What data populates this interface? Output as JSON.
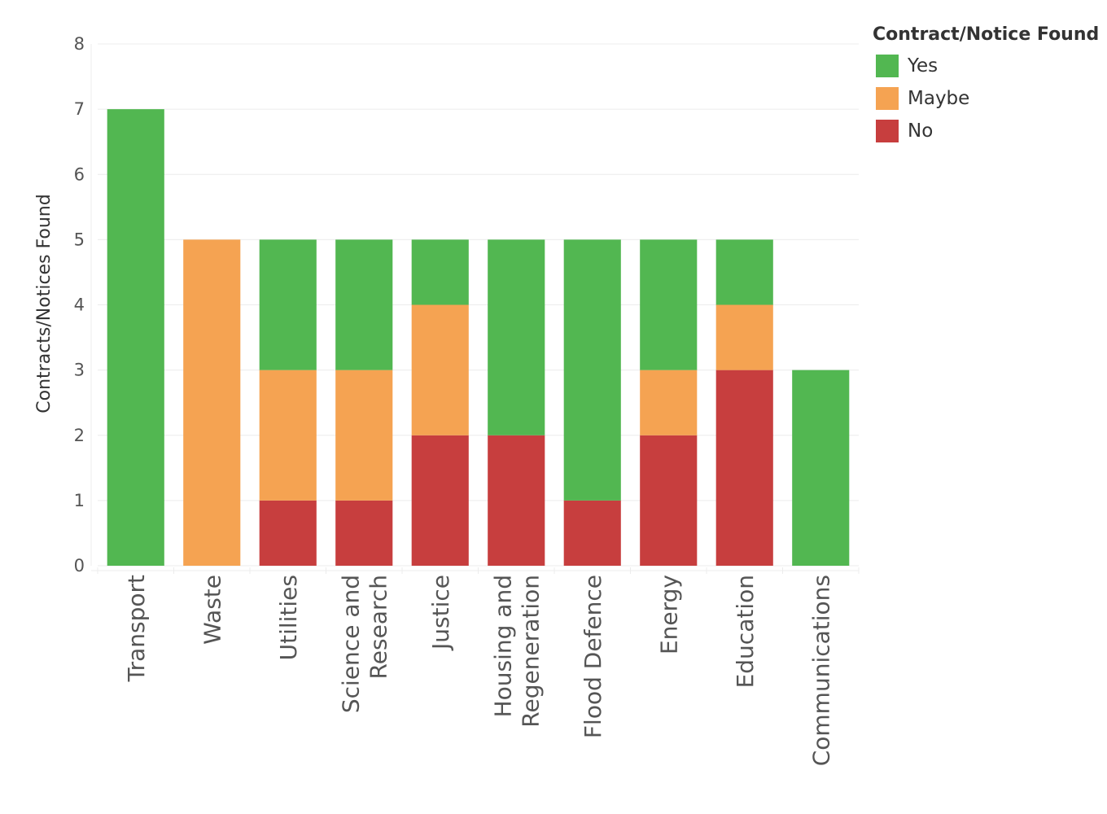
{
  "chart_data": {
    "type": "bar",
    "stacked": true,
    "categories": [
      "Transport",
      "Waste",
      "Utilities",
      "Science and Research",
      "Justice",
      "Housing and Regeneration",
      "Flood Defence",
      "Energy",
      "Education",
      "Communications"
    ],
    "series": [
      {
        "name": "No",
        "color": "#c73e3e",
        "values": [
          0,
          0,
          1,
          1,
          2,
          2,
          1,
          2,
          3,
          0
        ]
      },
      {
        "name": "Maybe",
        "color": "#f5a352",
        "values": [
          0,
          5,
          2,
          2,
          2,
          0,
          0,
          1,
          1,
          0
        ]
      },
      {
        "name": "Yes",
        "color": "#52b751",
        "values": [
          7,
          0,
          2,
          2,
          1,
          3,
          4,
          2,
          1,
          3
        ]
      }
    ],
    "ylabel": "Contracts/Notices Found",
    "ylim": [
      0,
      8
    ],
    "yticks": [
      0,
      1,
      2,
      3,
      4,
      5,
      6,
      7,
      8
    ],
    "grid": true,
    "legend": {
      "title": "Contract/Notice Found",
      "placement": "top-right",
      "items": [
        {
          "label": "Yes",
          "color": "#52b751"
        },
        {
          "label": "Maybe",
          "color": "#f5a352"
        },
        {
          "label": "No",
          "color": "#c73e3e"
        }
      ]
    }
  }
}
